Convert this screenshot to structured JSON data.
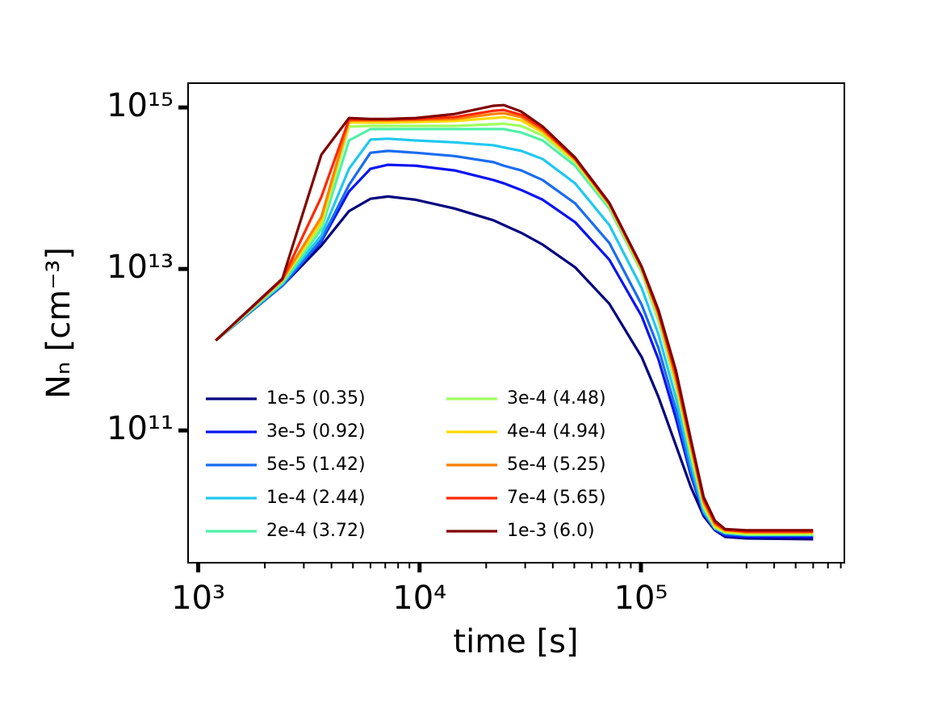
{
  "chart_data": {
    "type": "line",
    "xlabel": "time [s]",
    "ylabel": "Nₙ [cm⁻³]",
    "xscale": "log",
    "yscale": "log",
    "xlim": [
      900,
      830000
    ],
    "ylim": [
      2300000000.0,
      2000000000000000.0
    ],
    "xticks": [
      {
        "value": 1000,
        "label": "10³"
      },
      {
        "value": 10000,
        "label": "10⁴"
      },
      {
        "value": 100000,
        "label": "10⁵"
      }
    ],
    "xminorticks": [
      2000,
      3000,
      4000,
      5000,
      6000,
      7000,
      8000,
      9000,
      20000,
      30000,
      40000,
      50000,
      60000,
      70000,
      80000,
      90000,
      200000,
      300000,
      400000,
      500000,
      600000,
      700000,
      800000
    ],
    "yticks": [
      {
        "value": 100000000000.0,
        "label": "10¹¹"
      },
      {
        "value": 10000000000000.0,
        "label": "10¹³"
      },
      {
        "value": 1000000000000000.0,
        "label": "10¹⁵"
      }
    ],
    "grid": false,
    "legend": "lower left",
    "legend_columns": 2,
    "x": [
      1200,
      2400,
      3600,
      4800,
      6000,
      7200,
      9600,
      14400,
      21600,
      24000,
      28800,
      36000,
      50400,
      72000,
      100800,
      120000,
      144000,
      168000,
      192000,
      216000,
      240000,
      300000,
      600000
    ],
    "series": [
      {
        "name": "1e-5 (0.35)",
        "color": "#00007f",
        "values": [
          1300000000000.0,
          6200000000000.0,
          19500000000000.0,
          52000000000000.0,
          74000000000000.0,
          79000000000000.0,
          72000000000000.0,
          56000000000000.0,
          40000000000000.0,
          35000000000000.0,
          28000000000000.0,
          20000000000000.0,
          10500000000000.0,
          3700000000000.0,
          810000000000.0,
          260000000000.0,
          65000000000.0,
          20000000000.0,
          8700000000.0,
          5800000000.0,
          4800000000.0,
          4600000000.0,
          4500000000.0
        ]
      },
      {
        "name": "3e-5 (0.92)",
        "color": "#0a14f0",
        "values": [
          1300000000000.0,
          6200000000000.0,
          22000000000000.0,
          91000000000000.0,
          174000000000000.0,
          195000000000000.0,
          190000000000000.0,
          166000000000000.0,
          126000000000000.0,
          115000000000000.0,
          95000000000000.0,
          72000000000000.0,
          38000000000000.0,
          13000000000000.0,
          2600000000000.0,
          760000000000.0,
          140000000000.0,
          28000000000.0,
          9300000000.0,
          5900000000.0,
          5000000000.0,
          4800000000.0,
          4800000000.0
        ]
      },
      {
        "name": "5e-5 (1.42)",
        "color": "#1a6cf0",
        "values": [
          1300000000000.0,
          6200000000000.0,
          23000000000000.0,
          110000000000000.0,
          275000000000000.0,
          290000000000000.0,
          275000000000000.0,
          250000000000000.0,
          210000000000000.0,
          190000000000000.0,
          166000000000000.0,
          126000000000000.0,
          65000000000000.0,
          21000000000000.0,
          3600000000000.0,
          1050000000000.0,
          180000000000.0,
          31000000000.0,
          9500000000.0,
          6000000000.0,
          5200000000.0,
          5000000000.0,
          5000000000.0
        ]
      },
      {
        "name": "1e-4 (2.44)",
        "color": "#20c8f0",
        "values": [
          1300000000000.0,
          6600000000000.0,
          26000000000000.0,
          174000000000000.0,
          400000000000000.0,
          410000000000000.0,
          390000000000000.0,
          370000000000000.0,
          340000000000000.0,
          320000000000000.0,
          290000000000000.0,
          230000000000000.0,
          115000000000000.0,
          35000000000000.0,
          5800000000000.0,
          1550000000000.0,
          250000000000.0,
          39000000000.0,
          10000000000.0,
          6200000000.0,
          5400000000.0,
          5100000000.0,
          5100000000.0
        ]
      },
      {
        "name": "2e-4 (3.72)",
        "color": "#50f0a8",
        "values": [
          1300000000000.0,
          6600000000000.0,
          31000000000000.0,
          390000000000000.0,
          540000000000000.0,
          540000000000000.0,
          540000000000000.0,
          540000000000000.0,
          540000000000000.0,
          540000000000000.0,
          490000000000000.0,
          390000000000000.0,
          190000000000000.0,
          56000000000000.0,
          9100000000000.0,
          2300000000000.0,
          350000000000.0,
          49000000000.0,
          11000000000.0,
          6200000000.0,
          5400000000.0,
          5100000000.0,
          5100000000.0
        ]
      },
      {
        "name": "3e-4 (4.48)",
        "color": "#a0ff60",
        "values": [
          1300000000000.0,
          7200000000000.0,
          35000000000000.0,
          580000000000000.0,
          590000000000000.0,
          590000000000000.0,
          590000000000000.0,
          590000000000000.0,
          620000000000000.0,
          630000000000000.0,
          590000000000000.0,
          450000000000000.0,
          210000000000000.0,
          60000000000000.0,
          9500000000000.0,
          2450000000000.0,
          360000000000.0,
          52000000000.0,
          11500000000.0,
          6300000000.0,
          5500000000.0,
          5200000000.0,
          5200000000.0
        ]
      },
      {
        "name": "4e-4 (4.94)",
        "color": "#ffd800",
        "values": [
          1300000000000.0,
          7200000000000.0,
          39000000000000.0,
          650000000000000.0,
          650000000000000.0,
          650000000000000.0,
          660000000000000.0,
          680000000000000.0,
          740000000000000.0,
          760000000000000.0,
          690000000000000.0,
          490000000000000.0,
          220000000000000.0,
          62000000000000.0,
          9800000000000.0,
          2600000000000.0,
          400000000000.0,
          59000000000.0,
          12300000000.0,
          6600000000.0,
          5600000000.0,
          5400000000.0,
          5400000000.0
        ]
      },
      {
        "name": "5e-4 (5.25)",
        "color": "#ff8000",
        "values": [
          1300000000000.0,
          7400000000000.0,
          44000000000000.0,
          690000000000000.0,
          690000000000000.0,
          690000000000000.0,
          700000000000000.0,
          720000000000000.0,
          830000000000000.0,
          850000000000000.0,
          760000000000000.0,
          520000000000000.0,
          230000000000000.0,
          63000000000000.0,
          10200000000000.0,
          2750000000000.0,
          440000000000.0,
          66000000000.0,
          13000000000.0,
          6900000000.0,
          5800000000.0,
          5500000000.0,
          5500000000.0
        ]
      },
      {
        "name": "7e-4 (5.65)",
        "color": "#ff2800",
        "values": [
          1300000000000.0,
          7400000000000.0,
          78000000000000.0,
          710000000000000.0,
          710000000000000.0,
          710000000000000.0,
          720000000000000.0,
          760000000000000.0,
          910000000000000.0,
          930000000000000.0,
          810000000000000.0,
          550000000000000.0,
          230000000000000.0,
          65000000000000.0,
          10500000000000.0,
          2900000000000.0,
          490000000000.0,
          72000000000.0,
          14000000000.0,
          7200000000.0,
          5900000000.0,
          5600000000.0,
          5600000000.0
        ]
      },
      {
        "name": "1e-3 (6.0)",
        "color": "#800000",
        "values": [
          1300000000000.0,
          7600000000000.0,
          260000000000000.0,
          740000000000000.0,
          720000000000000.0,
          720000000000000.0,
          740000000000000.0,
          830000000000000.0,
          1050000000000000.0,
          1070000000000000.0,
          890000000000000.0,
          580000000000000.0,
          240000000000000.0,
          66000000000000.0,
          10700000000000.0,
          3100000000000.0,
          550000000000.0,
          78000000000.0,
          15000000000.0,
          7600000000.0,
          6000000000.0,
          5800000000.0,
          5800000000.0
        ]
      }
    ]
  }
}
